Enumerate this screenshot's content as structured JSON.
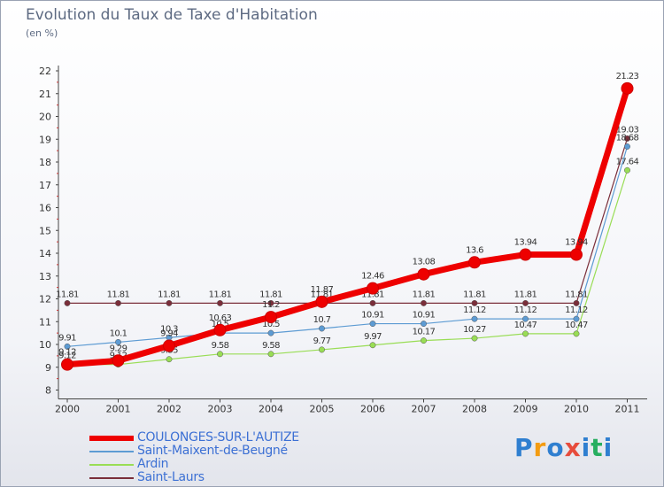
{
  "chart_data": {
    "type": "line",
    "title": "Evolution du Taux de Taxe d'Habitation",
    "subtitle": "(en %)",
    "x": [
      "2000",
      "2001",
      "2002",
      "2003",
      "2004",
      "2005",
      "2006",
      "2007",
      "2008",
      "2009",
      "2010",
      "2011"
    ],
    "y_ticks": [
      "8",
      "9",
      "10",
      "11",
      "12",
      "13",
      "14",
      "15",
      "16",
      "17",
      "18",
      "19",
      "20",
      "21",
      "22"
    ],
    "ylim": [
      8,
      22
    ],
    "grid": false,
    "series": [
      {
        "name": "Saint-Laurs",
        "color": "#7a2e3a",
        "values": [
          11.81,
          11.81,
          11.81,
          11.81,
          11.81,
          11.81,
          11.81,
          11.81,
          11.81,
          11.81,
          11.81,
          19.03
        ],
        "labels": [
          "11.81",
          "11.81",
          "11.81",
          "11.81",
          "11.81",
          "11.81",
          "11.81",
          "11.81",
          "11.81",
          "11.81",
          "11.81",
          "19.03"
        ]
      },
      {
        "name": "Ardin",
        "color": "#99dd55",
        "values": [
          9.12,
          9.12,
          9.35,
          9.58,
          9.58,
          9.77,
          9.97,
          10.17,
          10.27,
          10.47,
          10.47,
          17.64
        ],
        "labels": [
          "9.12",
          "9.12",
          "9.35",
          "9.58",
          "9.58",
          "9.77",
          "9.97",
          "10.17",
          "10.27",
          "10.47",
          "10.47",
          "17.64"
        ]
      },
      {
        "name": "Saint-Maixent-de-Beugné",
        "color": "#5d9bd3",
        "values": [
          9.91,
          10.1,
          10.3,
          10.5,
          10.5,
          10.7,
          10.91,
          10.91,
          11.12,
          11.12,
          11.12,
          18.68
        ],
        "labels": [
          "9.91",
          "10.1",
          "10.3",
          "10.5",
          "10.5",
          "10.7",
          "10.91",
          "10.91",
          "11.12",
          "11.12",
          "11.12",
          "18.68"
        ]
      },
      {
        "name": "COULONGES-SUR-L'AUTIZE",
        "color": "#ee0000",
        "values": [
          9.12,
          9.29,
          9.94,
          10.63,
          11.2,
          11.87,
          12.46,
          13.08,
          13.6,
          13.94,
          13.94,
          21.23
        ],
        "labels": [
          "9.12",
          "9.29",
          "9.94",
          "10.63",
          "11.2",
          "11.87",
          "12.46",
          "13.08",
          "13.6",
          "13.94",
          "13.94",
          "21.23"
        ]
      }
    ]
  },
  "legend": [
    {
      "label": "COULONGES-SUR-L'AUTIZE",
      "color": "#ee0000"
    },
    {
      "label": "Saint-Maixent-de-Beugné",
      "color": "#5d9bd3"
    },
    {
      "label": "Ardin",
      "color": "#99dd55"
    },
    {
      "label": "Saint-Laurs",
      "color": "#7a2e3a"
    }
  ],
  "logo": {
    "letters": [
      "P",
      "r",
      "o",
      "x",
      "i",
      "t",
      "i"
    ],
    "colors": [
      "#2f7fd0",
      "#f39c12",
      "#2f7fd0",
      "#e74c3c",
      "#2f7fd0",
      "#27ae60",
      "#2f7fd0"
    ]
  }
}
